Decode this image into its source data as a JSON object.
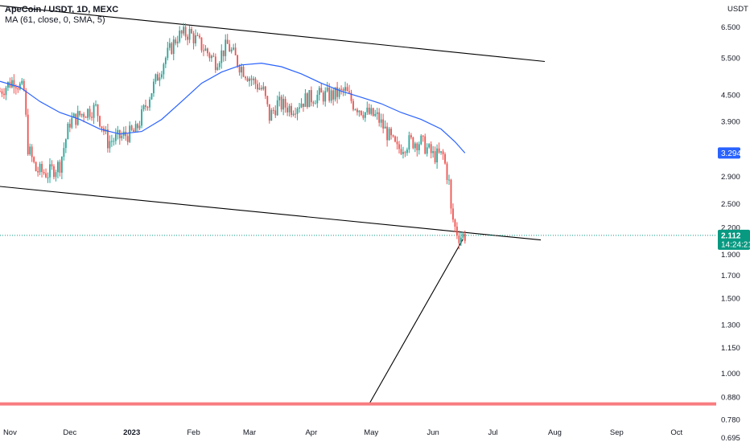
{
  "header": {
    "symbol_title": "ApeCoin / USDT, 1D, MEXC",
    "indicator_label": "MA (61, close, 0, SMA, 5)"
  },
  "price_axis": {
    "currency_label": "USDT",
    "ticks": [
      "6.500",
      "5.500",
      "4.500",
      "3.900",
      "3.294",
      "2.900",
      "2.500",
      "2.200",
      "1.900",
      "1.700",
      "1.500",
      "1.300",
      "1.150",
      "1.000",
      "0.880",
      "0.780",
      "0.695"
    ]
  },
  "tags": {
    "ma_value": "3.294",
    "last_price": "2.112",
    "countdown": "14:24:21"
  },
  "colors": {
    "up": "#26a69a",
    "down": "#ef5350",
    "ma_line": "#2962ff",
    "ma_tag": "#2962ff",
    "price_tag": "#089981",
    "support_line": "#f77c80",
    "trend_line": "#000000"
  },
  "chart_data": {
    "type": "candlestick",
    "scale": "log",
    "x_range": [
      "2022-10-27",
      "2023-10-12"
    ],
    "y_range": [
      0.695,
      6.9
    ],
    "x_tick_labels": [
      {
        "label": "Nov",
        "date": "2022-11-01"
      },
      {
        "label": "Dec",
        "date": "2022-12-01"
      },
      {
        "label": "2023",
        "date": "2023-01-01"
      },
      {
        "label": "Feb",
        "date": "2023-02-01"
      },
      {
        "label": "Mar",
        "date": "2023-03-01"
      },
      {
        "label": "Apr",
        "date": "2023-04-01"
      },
      {
        "label": "May",
        "date": "2023-05-01"
      },
      {
        "label": "Jun",
        "date": "2023-06-01"
      },
      {
        "label": "Jul",
        "date": "2023-07-01"
      },
      {
        "label": "Aug",
        "date": "2023-08-01"
      },
      {
        "label": "Sep",
        "date": "2023-09-01"
      },
      {
        "label": "Oct",
        "date": "2023-10-01"
      }
    ],
    "close_path": [
      [
        "2022-10-27",
        4.6
      ],
      [
        "2022-11-03",
        4.9
      ],
      [
        "2022-11-08",
        4.6
      ],
      [
        "2022-11-10",
        3.4
      ],
      [
        "2022-11-14",
        3.0
      ],
      [
        "2022-11-20",
        2.95
      ],
      [
        "2022-11-26",
        3.1
      ],
      [
        "2022-12-01",
        3.9
      ],
      [
        "2022-12-08",
        4.1
      ],
      [
        "2022-12-14",
        4.2
      ],
      [
        "2022-12-20",
        3.5
      ],
      [
        "2022-12-27",
        3.6
      ],
      [
        "2023-01-03",
        3.7
      ],
      [
        "2023-01-10",
        4.5
      ],
      [
        "2023-01-17",
        5.4
      ],
      [
        "2023-01-24",
        6.2
      ],
      [
        "2023-01-30",
        6.3
      ],
      [
        "2023-02-06",
        5.8
      ],
      [
        "2023-02-12",
        5.4
      ],
      [
        "2023-02-18",
        5.9
      ],
      [
        "2023-02-24",
        5.3
      ],
      [
        "2023-03-02",
        4.9
      ],
      [
        "2023-03-08",
        4.6
      ],
      [
        "2023-03-11",
        4.0
      ],
      [
        "2023-03-15",
        4.3
      ],
      [
        "2023-03-22",
        4.2
      ],
      [
        "2023-03-29",
        4.4
      ],
      [
        "2023-04-05",
        4.5
      ],
      [
        "2023-04-12",
        4.5
      ],
      [
        "2023-04-18",
        4.6
      ],
      [
        "2023-04-22",
        4.3
      ],
      [
        "2023-04-28",
        4.1
      ],
      [
        "2023-05-04",
        4.0
      ],
      [
        "2023-05-10",
        3.6
      ],
      [
        "2023-05-14",
        3.35
      ],
      [
        "2023-05-20",
        3.5
      ],
      [
        "2023-05-26",
        3.5
      ],
      [
        "2023-06-01",
        3.25
      ],
      [
        "2023-06-06",
        3.25
      ],
      [
        "2023-06-09",
        2.8
      ],
      [
        "2023-06-10",
        2.4
      ],
      [
        "2023-06-12",
        2.2
      ],
      [
        "2023-06-14",
        2.1
      ],
      [
        "2023-06-17",
        2.112
      ]
    ],
    "series": [
      {
        "name": "MA (61, close, 0, SMA, 5)",
        "type": "line",
        "points": [
          [
            "2022-10-27",
            4.85
          ],
          [
            "2022-11-06",
            4.7
          ],
          [
            "2022-11-16",
            4.35
          ],
          [
            "2022-11-26",
            4.1
          ],
          [
            "2022-12-06",
            3.95
          ],
          [
            "2022-12-16",
            3.75
          ],
          [
            "2022-12-26",
            3.65
          ],
          [
            "2023-01-06",
            3.7
          ],
          [
            "2023-01-16",
            3.95
          ],
          [
            "2023-01-26",
            4.35
          ],
          [
            "2023-02-05",
            4.8
          ],
          [
            "2023-02-15",
            5.1
          ],
          [
            "2023-02-25",
            5.3
          ],
          [
            "2023-03-07",
            5.35
          ],
          [
            "2023-03-17",
            5.25
          ],
          [
            "2023-03-27",
            5.05
          ],
          [
            "2023-04-06",
            4.8
          ],
          [
            "2023-04-16",
            4.6
          ],
          [
            "2023-04-26",
            4.45
          ],
          [
            "2023-05-06",
            4.3
          ],
          [
            "2023-05-16",
            4.1
          ],
          [
            "2023-05-26",
            3.95
          ],
          [
            "2023-06-05",
            3.75
          ],
          [
            "2023-06-12",
            3.5
          ],
          [
            "2023-06-17",
            3.294
          ]
        ]
      }
    ],
    "drawings": [
      {
        "kind": "trend-line",
        "from": [
          "2022-10-27",
          7.3
        ],
        "to": [
          "2023-07-27",
          5.4
        ]
      },
      {
        "kind": "trend-line",
        "from": [
          "2022-10-27",
          2.75
        ],
        "to": [
          "2023-07-25",
          2.06
        ]
      },
      {
        "kind": "trend-line",
        "from": [
          "2023-04-30",
          0.85
        ],
        "to": [
          "2023-06-16",
          2.07
        ]
      },
      {
        "kind": "horizontal-line",
        "value": 0.85
      }
    ],
    "last_price": 2.112,
    "last_ma": 3.294,
    "grid": false
  }
}
